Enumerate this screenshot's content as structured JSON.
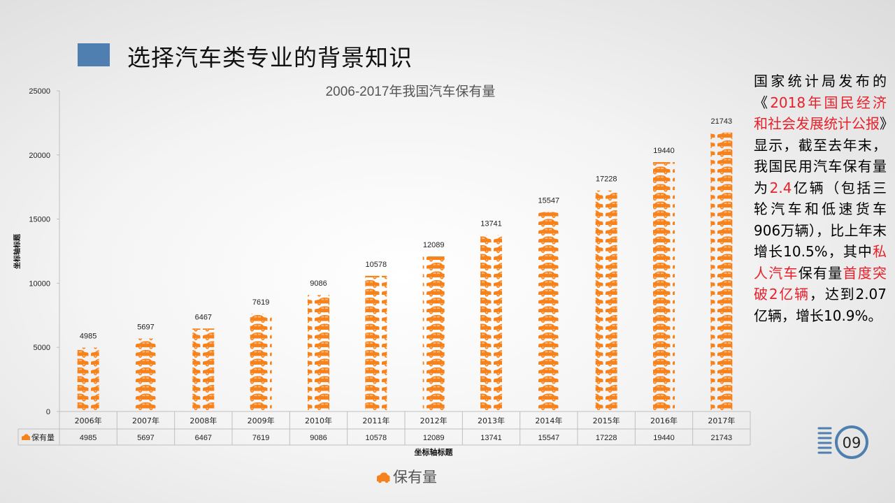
{
  "slide": {
    "title": "选择汽车类专业的背景知识",
    "page_number": "09"
  },
  "colors": {
    "bar": "#f7821b",
    "title_block": "#4e7fb0",
    "badge": "#4f7fae",
    "highlight": "#e8202a"
  },
  "chart_data": {
    "type": "bar",
    "title": "2006-2017年我国汽车保有量",
    "xlabel": "坐标轴标题",
    "ylabel": "坐标轴标题",
    "ylim": [
      0,
      25000
    ],
    "yticks": [
      0,
      5000,
      10000,
      15000,
      20000,
      25000
    ],
    "categories": [
      "2006年",
      "2007年",
      "2008年",
      "2009年",
      "2010年",
      "2011年",
      "2012年",
      "2013年",
      "2014年",
      "2015年",
      "2016年",
      "2017年"
    ],
    "series": [
      {
        "name": "保有量",
        "values": [
          4985,
          5697,
          6467,
          7619,
          9086,
          10578,
          12089,
          13741,
          15547,
          17228,
          19440,
          21743
        ]
      }
    ],
    "legend": "bottom",
    "data_table": true,
    "bar_fill": "car-icon-pattern"
  },
  "side_text": {
    "p1": "国家统计局发布的《",
    "report_name": "2018年国民经济和社会发展统计公报",
    "p2": "》显示，截至去年末，我国民用汽车保有量为",
    "total": "2.4",
    "p3": "亿辆（包括三轮汽车和低速货车906万辆），比上年末增长10.5%，其中",
    "private": "私人汽车",
    "p4": "保有量",
    "first_time": "首度突破2亿辆",
    "p5": "，达到2.07亿辆，增长10.9%。"
  }
}
